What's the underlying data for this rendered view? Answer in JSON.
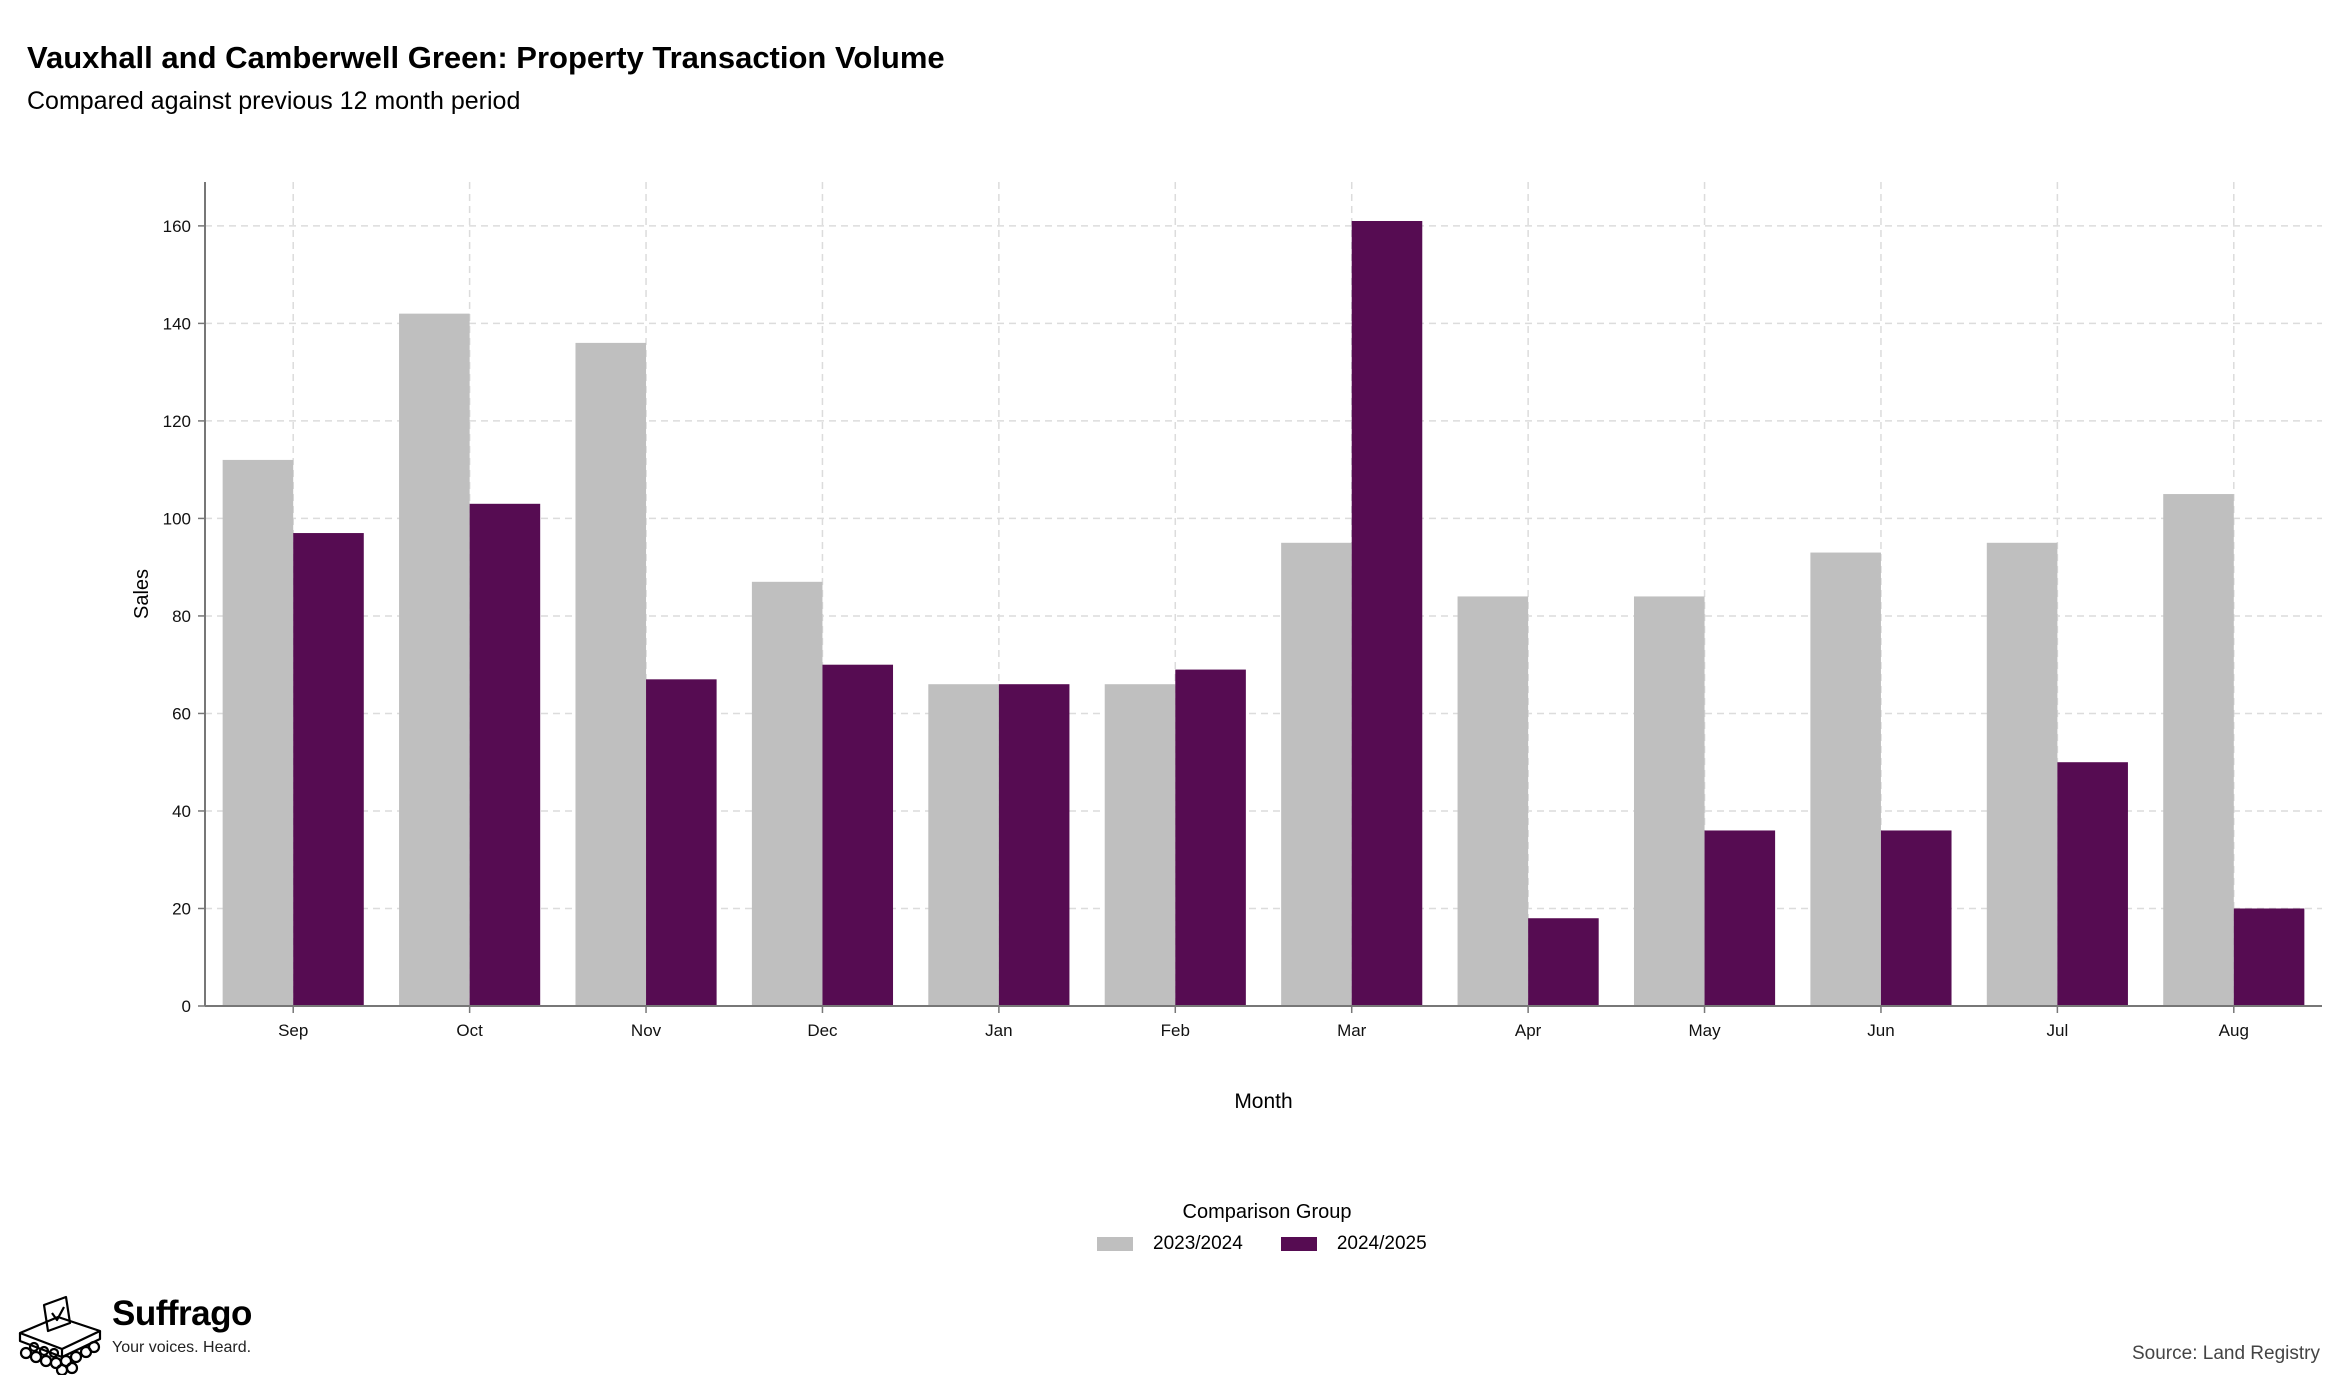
{
  "header": {
    "title": "Vauxhall and Camberwell Green: Property Transaction Volume",
    "subtitle": "Compared against previous 12 month period"
  },
  "legend": {
    "title": "Comparison Group",
    "items": [
      {
        "label": "2023/2024",
        "color": "#bfbfbf"
      },
      {
        "label": "2024/2025",
        "color": "#560c52"
      }
    ]
  },
  "branding": {
    "name": "Suffrago",
    "tagline": "Your voices. Heard.",
    "icon": "ballot-box-icon"
  },
  "footer": {
    "source": "Source: Land Registry"
  },
  "chart_data": {
    "type": "bar",
    "title": "Vauxhall and Camberwell Green: Property Transaction Volume",
    "subtitle": "Compared against previous 12 month period",
    "xlabel": "Month",
    "ylabel": "Sales",
    "categories": [
      "Sep",
      "Oct",
      "Nov",
      "Dec",
      "Jan",
      "Feb",
      "Mar",
      "Apr",
      "May",
      "Jun",
      "Jul",
      "Aug"
    ],
    "series": [
      {
        "name": "2023/2024",
        "color": "#bfbfbf",
        "values": [
          112,
          142,
          136,
          87,
          66,
          66,
          95,
          84,
          84,
          93,
          95,
          105
        ]
      },
      {
        "name": "2024/2025",
        "color": "#560c52",
        "values": [
          97,
          103,
          67,
          70,
          66,
          69,
          161,
          18,
          36,
          36,
          50,
          20
        ]
      }
    ],
    "ylim": [
      0,
      169
    ],
    "yticks": [
      0,
      20,
      40,
      60,
      80,
      100,
      120,
      140,
      160
    ],
    "grid": true,
    "legend_position": "bottom"
  }
}
